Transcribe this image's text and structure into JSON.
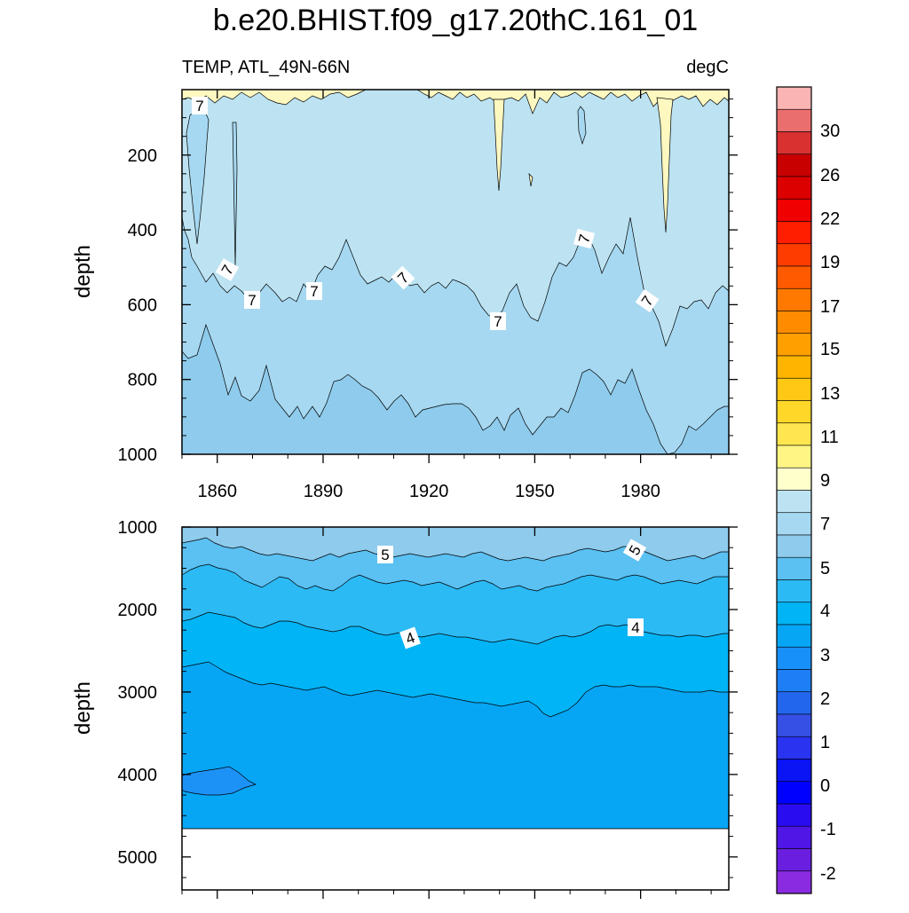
{
  "title": "b.e20.BHIST.f09_g17.20thC.161_01",
  "chart_data": {
    "type": "contour",
    "variable": "TEMP",
    "region": "TEMP, ATL_49N-66N",
    "units": "degC",
    "x_ticks": [
      "1860",
      "1890",
      "1920",
      "1950",
      "1980"
    ],
    "x_tick_values": [
      1860,
      1890,
      1920,
      1950,
      1980
    ],
    "xlim": [
      1850,
      2005
    ],
    "panels": [
      {
        "name": "upper",
        "ylabel": "depth",
        "ylim": [
          25,
          1000
        ],
        "y_ticks": [
          "200",
          "400",
          "600",
          "800",
          "1000"
        ],
        "y_tick_values": [
          200,
          400,
          600,
          800,
          1000
        ],
        "contour_labels": [
          "7",
          "7",
          "7",
          "7",
          "7",
          "7",
          "7",
          "7"
        ],
        "bands_top_to_bottom_degC": [
          ">7 (near-surface, 8-9)",
          "7-8",
          "6-7",
          "5-6"
        ]
      },
      {
        "name": "lower",
        "ylabel": "depth",
        "ylim": [
          1000,
          5400
        ],
        "y_ticks": [
          "1000",
          "2000",
          "3000",
          "4000",
          "5000"
        ],
        "y_tick_values": [
          1000,
          2000,
          3000,
          4000,
          5000
        ],
        "contour_labels": [
          "5",
          "5",
          "4",
          "4"
        ],
        "ocean_floor_depth": 4600,
        "bands_top_to_bottom_degC": [
          "5-6",
          "4.5-5",
          "4-4.5",
          "3.5-4",
          "3-3.5",
          "2.5-3"
        ]
      }
    ],
    "colorbar": {
      "labels": [
        "30",
        "26",
        "22",
        "19",
        "17",
        "15",
        "13",
        "11",
        "9",
        "7",
        "5",
        "4",
        "3",
        "2",
        "1",
        "0",
        "-1",
        "-2"
      ],
      "colors_top_to_bottom": [
        "#fbb4b4",
        "#eb6e6e",
        "#d93030",
        "#c80000",
        "#dc0000",
        "#f00000",
        "#ff1e00",
        "#ff3c00",
        "#ff5a00",
        "#ff7800",
        "#ff8c00",
        "#ffa000",
        "#ffb400",
        "#ffc814",
        "#ffd728",
        "#ffe650",
        "#fff585",
        "#ffffcc",
        "#bde3f2",
        "#a6d8f1",
        "#8ecbec",
        "#5bc0f2",
        "#2cbaf5",
        "#00b4f5",
        "#07a6f5",
        "#1890fa",
        "#1d7ef6",
        "#2366ee",
        "#3650e6",
        "#2a34f0",
        "#0a14f4",
        "#0000ff",
        "#2a0cf0",
        "#4f16e6",
        "#6a1fe0",
        "#8a2be2"
      ]
    },
    "colors": {
      "band_gt7": "#fdf7c0",
      "band_7_8": "#bde3f2",
      "band_6_7": "#a6d8f1",
      "band_5_6": "#8ecbec",
      "band_45_5": "#5bc0f2",
      "band_4_45": "#2cbaf5",
      "band_35_4": "#00b4f5",
      "band_3_35": "#07a6f5",
      "band_25_3": "#1d92f6"
    }
  }
}
